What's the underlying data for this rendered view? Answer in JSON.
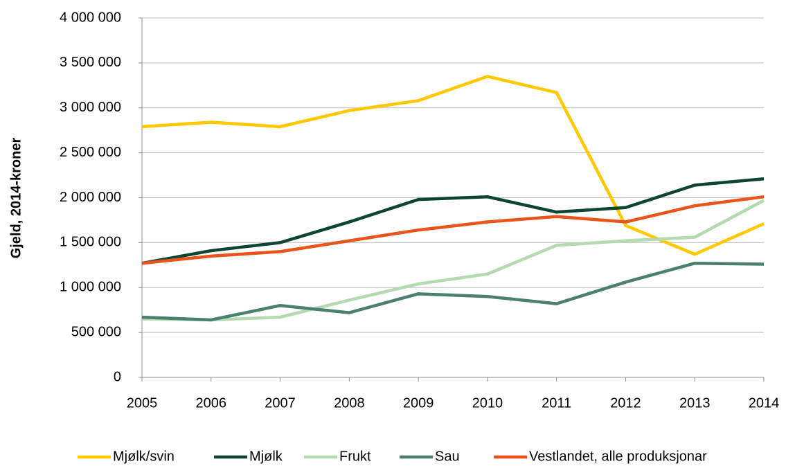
{
  "chart_data": {
    "type": "line",
    "y_label": "Gjeld, 2014-kroner",
    "x": [
      2005,
      2006,
      2007,
      2008,
      2009,
      2010,
      2011,
      2012,
      2013,
      2014
    ],
    "xlim": [
      2005,
      2014
    ],
    "xticks": [
      2005,
      2006,
      2007,
      2008,
      2009,
      2010,
      2011,
      2012,
      2013,
      2014
    ],
    "ylim": [
      0,
      4000000
    ],
    "yticks": [
      0,
      {
        "value": 500000,
        "label": "500 000"
      },
      {
        "value": 1000000,
        "label": "1 000 000"
      },
      {
        "value": 1500000,
        "label": "1 500 000"
      },
      {
        "value": 2000000,
        "label": "2 000 000"
      },
      {
        "value": 2500000,
        "label": "2 500 000"
      },
      {
        "value": 3000000,
        "label": "3 000 000"
      },
      {
        "value": 3500000,
        "label": "3 500 000"
      },
      {
        "value": 4000000,
        "label": "4 000 000"
      }
    ],
    "grid": true,
    "legend": "bottom",
    "series": [
      {
        "name": "Mjølk/svin",
        "color": "#ffc800",
        "values": [
          2790000,
          2840000,
          2790000,
          2970000,
          3080000,
          3350000,
          3170000,
          1690000,
          1370000,
          1710000
        ]
      },
      {
        "name": "Mjølk",
        "color": "#0d4530",
        "values": [
          1270000,
          1410000,
          1500000,
          1730000,
          1980000,
          2010000,
          1840000,
          1890000,
          2140000,
          2210000
        ]
      },
      {
        "name": "Frukt",
        "color": "#b5d9b0",
        "values": [
          650000,
          640000,
          670000,
          860000,
          1040000,
          1150000,
          1470000,
          1520000,
          1560000,
          1970000
        ]
      },
      {
        "name": "Sau",
        "color": "#4b8070",
        "values": [
          670000,
          640000,
          800000,
          720000,
          930000,
          900000,
          820000,
          1060000,
          1270000,
          1260000
        ]
      },
      {
        "name": "Vestlandet, alle produksjonar",
        "color": "#e8541a",
        "values": [
          1270000,
          1350000,
          1400000,
          1520000,
          1640000,
          1730000,
          1790000,
          1730000,
          1910000,
          2010000
        ]
      }
    ]
  }
}
